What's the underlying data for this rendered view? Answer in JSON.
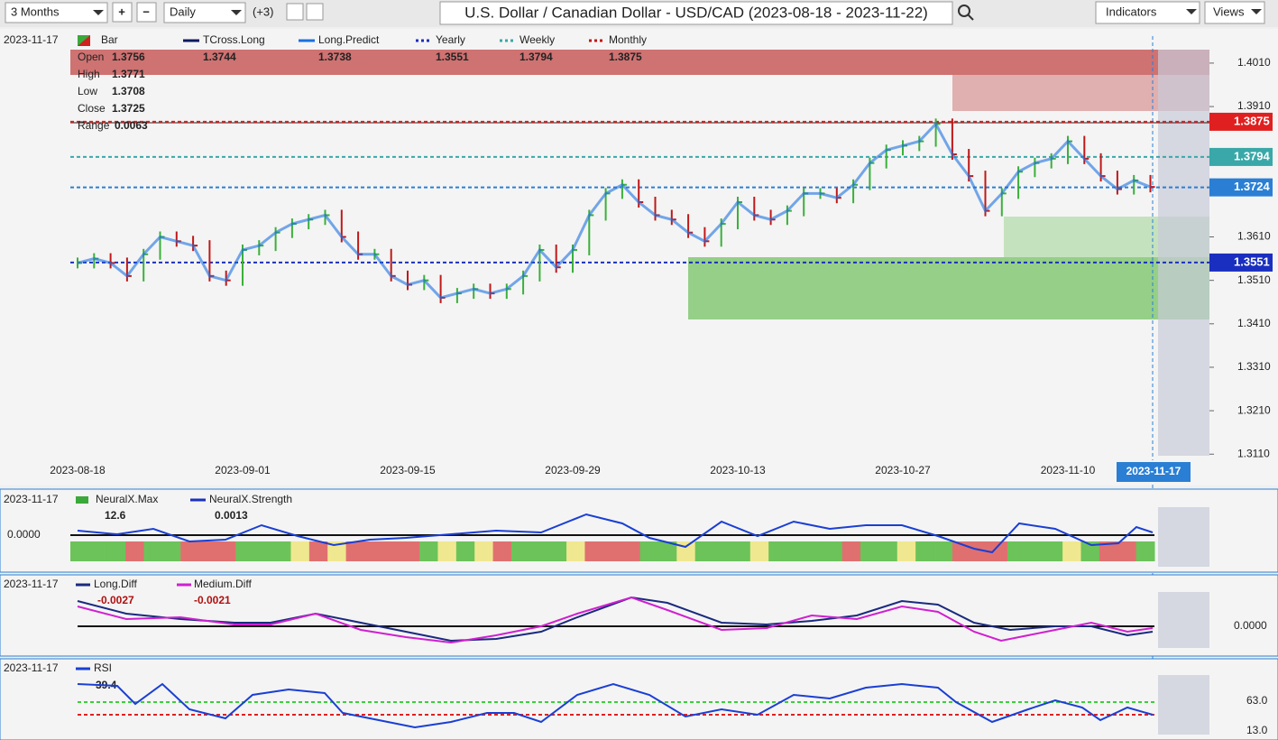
{
  "toolbar": {
    "period": "3 Months",
    "interval": "Daily",
    "extra": "(+3)",
    "title": "U.S. Dollar / Canadian Dollar - USD/CAD (2023-08-18 - 2023-11-22)",
    "indicators": "Indicators",
    "views": "Views"
  },
  "main": {
    "date": "2023-11-17",
    "legend": [
      {
        "name": "Bar"
      },
      {
        "name": "TCross.Long",
        "value": "1.3744"
      },
      {
        "name": "Long.Predict",
        "value": "1.3738"
      },
      {
        "name": "Yearly",
        "value": "1.3551"
      },
      {
        "name": "Weekly",
        "value": "1.3794"
      },
      {
        "name": "Monthly",
        "value": "1.3875"
      }
    ],
    "ohlc": [
      {
        "label": "Open",
        "value": "1.3756"
      },
      {
        "label": "High",
        "value": "1.3771"
      },
      {
        "label": "Low",
        "value": "1.3708"
      },
      {
        "label": "Close",
        "value": "1.3725"
      },
      {
        "label": "Range",
        "value": "0.0063"
      }
    ],
    "ylim": [
      1.3096,
      1.4041
    ],
    "yticks": [
      {
        "value": 1.401,
        "label": "1.4010"
      },
      {
        "value": 1.391,
        "label": "1.3910"
      },
      {
        "value": 1.361,
        "label": "1.3610"
      },
      {
        "value": 1.351,
        "label": "1.3510"
      },
      {
        "value": 1.341,
        "label": "1.3410"
      },
      {
        "value": 1.331,
        "label": "1.3310"
      },
      {
        "value": 1.321,
        "label": "1.3210"
      },
      {
        "value": 1.311,
        "label": "1.3110"
      }
    ],
    "levels": [
      {
        "value": 1.3875,
        "label": "1.3875",
        "color": "#e02020"
      },
      {
        "value": 1.3794,
        "label": "1.3794",
        "color": "#3aa8a8"
      },
      {
        "value": 1.3724,
        "label": "1.3724",
        "color": "#2a7fd4"
      },
      {
        "value": 1.3551,
        "label": "1.3551",
        "color": "#1a2fbf"
      }
    ],
    "dates": [
      "2023-08-18",
      "2023-09-01",
      "2023-09-15",
      "2023-09-29",
      "2023-10-13",
      "2023-10-27",
      "2023-11-10"
    ],
    "current_date": "2023-11-17",
    "closes": [
      1.355,
      1.356,
      1.355,
      1.352,
      1.357,
      1.361,
      1.36,
      1.359,
      1.352,
      1.351,
      1.358,
      1.359,
      1.362,
      1.364,
      1.365,
      1.366,
      1.361,
      1.357,
      1.357,
      1.352,
      1.35,
      1.351,
      1.347,
      1.348,
      1.349,
      1.348,
      1.349,
      1.352,
      1.358,
      1.354,
      1.358,
      1.366,
      1.371,
      1.373,
      1.369,
      1.366,
      1.365,
      1.362,
      1.36,
      1.364,
      1.369,
      1.366,
      1.365,
      1.367,
      1.371,
      1.371,
      1.37,
      1.373,
      1.378,
      1.381,
      1.382,
      1.383,
      1.387,
      1.38,
      1.375,
      1.367,
      1.371,
      1.376,
      1.378,
      1.379,
      1.383,
      1.379,
      1.375,
      1.372,
      1.374,
      1.3725
    ]
  },
  "neural": {
    "date": "2023-11-17",
    "legend": [
      {
        "name": "NeuralX.Max",
        "value": "12.6"
      },
      {
        "name": "NeuralX.Strength",
        "value": "0.0013"
      }
    ],
    "axis": "0.0000"
  },
  "diff": {
    "date": "2023-11-17",
    "legend": [
      {
        "name": "Long.Diff",
        "value": "-0.0027"
      },
      {
        "name": "Medium.Diff",
        "value": "-0.0021"
      }
    ],
    "axis": "0.0000"
  },
  "rsi": {
    "date": "2023-11-17",
    "legend": [
      {
        "name": "RSI",
        "value": "39.4"
      }
    ],
    "axis": [
      "63.0",
      "13.0"
    ]
  }
}
